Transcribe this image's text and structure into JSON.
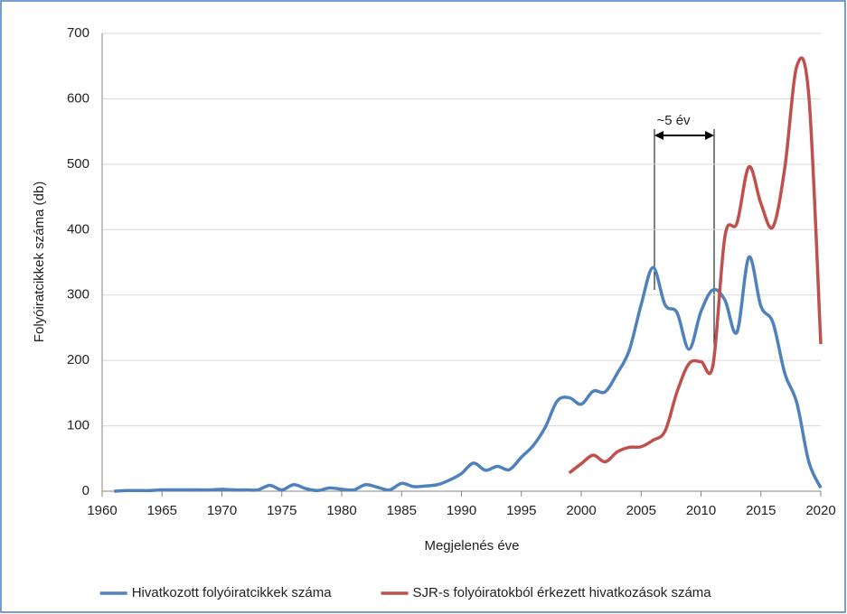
{
  "chart_data": {
    "type": "line",
    "xlabel": "Megjelenés éve",
    "ylabel": "Folyóiratcikkek száma (db)",
    "annotation": "~5 év",
    "x": [
      1961,
      1962,
      1963,
      1964,
      1965,
      1966,
      1967,
      1968,
      1969,
      1970,
      1971,
      1972,
      1973,
      1974,
      1975,
      1976,
      1977,
      1978,
      1979,
      1980,
      1981,
      1982,
      1983,
      1984,
      1985,
      1986,
      1987,
      1988,
      1989,
      1990,
      1991,
      1992,
      1993,
      1994,
      1995,
      1996,
      1997,
      1998,
      1999,
      2000,
      2001,
      2002,
      2003,
      2004,
      2005,
      2006,
      2007,
      2008,
      2009,
      2010,
      2011,
      2012,
      2013,
      2014,
      2015,
      2016,
      2017,
      2018,
      2019,
      2020
    ],
    "series": [
      {
        "name": "Hivatkozott folyóiratcikkek száma",
        "color": "#4f81bd",
        "values": [
          0,
          1,
          1,
          1,
          2,
          2,
          2,
          2,
          2,
          3,
          2,
          2,
          2,
          9,
          2,
          10,
          4,
          1,
          5,
          3,
          2,
          10,
          6,
          2,
          12,
          7,
          8,
          10,
          17,
          27,
          43,
          32,
          38,
          33,
          52,
          70,
          98,
          138,
          143,
          133,
          153,
          152,
          180,
          215,
          285,
          342,
          285,
          273,
          217,
          275,
          308,
          292,
          243,
          358,
          283,
          258,
          180,
          135,
          45,
          5
        ]
      },
      {
        "name": "SJR-s folyóiratokból érkezett hivatkozások száma",
        "color": "#c0504d",
        "values": [
          null,
          null,
          null,
          null,
          null,
          null,
          null,
          null,
          null,
          null,
          null,
          null,
          null,
          null,
          null,
          null,
          null,
          null,
          null,
          null,
          null,
          null,
          null,
          null,
          null,
          null,
          null,
          null,
          null,
          null,
          null,
          null,
          null,
          null,
          null,
          null,
          null,
          null,
          28,
          42,
          55,
          45,
          60,
          67,
          68,
          78,
          92,
          152,
          195,
          198,
          193,
          390,
          410,
          496,
          440,
          404,
          495,
          650,
          605,
          225
        ]
      }
    ],
    "xlim": [
      1960,
      2020
    ],
    "xticks": [
      1960,
      1965,
      1970,
      1975,
      1980,
      1985,
      1990,
      1995,
      2000,
      2005,
      2010,
      2015,
      2020
    ],
    "ylim": [
      0,
      700
    ],
    "yticks": [
      0,
      100,
      200,
      300,
      400,
      500,
      600,
      700
    ],
    "grid": true,
    "legend": "bottom"
  }
}
